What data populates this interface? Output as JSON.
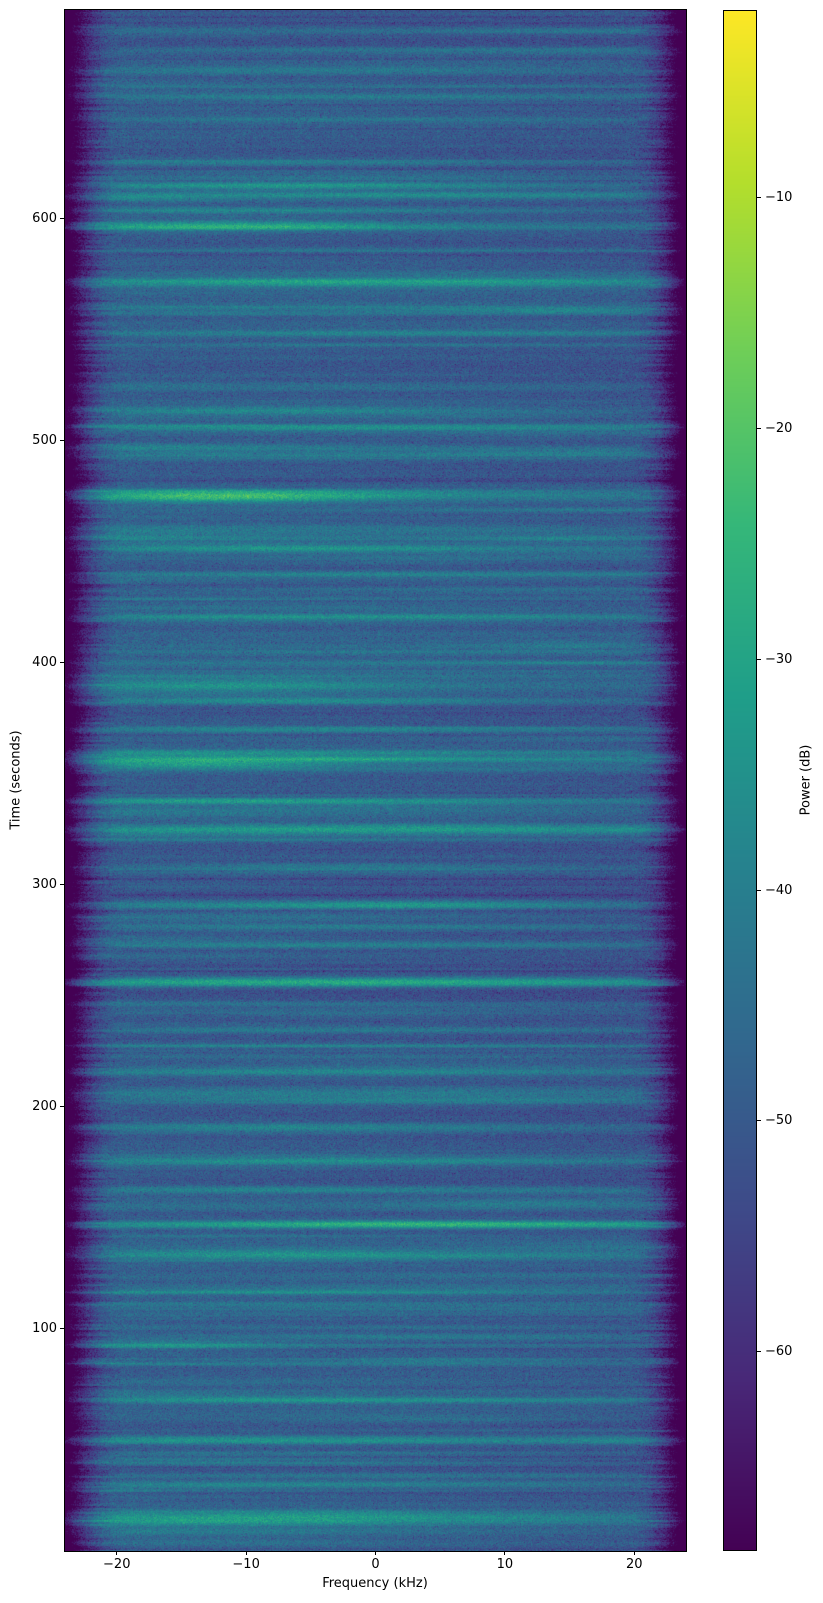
{
  "figure": {
    "background": "#ffffff",
    "text_color": "#000000",
    "spine_color": "#000000"
  },
  "chart_data": {
    "type": "heatmap",
    "subtype": "spectrogram-waterfall",
    "title": "",
    "xlabel": "Frequency (kHz)",
    "ylabel": "Time (seconds)",
    "xlim": [
      -24,
      24
    ],
    "ylim": [
      0,
      694
    ],
    "xticks": [
      -20,
      -10,
      0,
      10,
      20
    ],
    "yticks": [
      100,
      200,
      300,
      400,
      500,
      600
    ],
    "grid": false,
    "legend": "none",
    "colormap": "viridis",
    "palette": [
      "#440154",
      "#482878",
      "#3e4a89",
      "#31688e",
      "#26828e",
      "#1f9e89",
      "#35b779",
      "#6ece58",
      "#b4de2c",
      "#fde725"
    ],
    "colorbar": {
      "label": "Power (dB)",
      "ticks": [
        -10,
        -20,
        -30,
        -40,
        -50,
        -60
      ],
      "vmin": -68.6,
      "vmax": -1.9,
      "position": "right"
    },
    "signal": {
      "baseline_db": -51,
      "row_variation_db": 2.0,
      "speckle_db": 7,
      "band_edge_left_khz": 20.1,
      "band_edge_right_khz": 20.4,
      "edge_jitter_khz": 1.0,
      "edge_depth_db": 30,
      "seed": 1337,
      "minor_streaks": 240,
      "washes": 24,
      "bright_events": [
        {
          "t": 667,
          "amp": 10,
          "fc": -5,
          "fw": 18,
          "tw": 1.4
        },
        {
          "t": 655,
          "amp": 8,
          "fc": 0,
          "fw": 20,
          "tw": 1.0
        },
        {
          "t": 645,
          "amp": 6,
          "fc": -3,
          "fw": 18,
          "tw": 0.8
        },
        {
          "t": 626,
          "amp": 10,
          "fc": -8,
          "fw": 16,
          "tw": 1.4
        },
        {
          "t": 615,
          "amp": 15,
          "fc": -8,
          "fw": 13,
          "tw": 1.4
        },
        {
          "t": 611,
          "amp": 11,
          "fc": 5,
          "fw": 16,
          "tw": 1.0
        },
        {
          "t": 604,
          "amp": 12,
          "fc": -10,
          "fw": 14,
          "tw": 1.0
        },
        {
          "t": 597,
          "amp": 20,
          "fc": -11,
          "fw": 9,
          "tw": 1.6
        },
        {
          "t": 586,
          "amp": 8,
          "fc": 2,
          "fw": 18,
          "tw": 0.9
        },
        {
          "t": 572,
          "amp": 13,
          "fc": -5,
          "fw": 16,
          "tw": 1.2
        },
        {
          "t": 559,
          "amp": 9,
          "fc": 13,
          "fw": 7,
          "tw": 1.0
        },
        {
          "t": 549,
          "amp": 9,
          "fc": 4,
          "fw": 18,
          "tw": 1.0
        },
        {
          "t": 514,
          "amp": 14,
          "fc": -8,
          "fw": 14,
          "tw": 1.5
        },
        {
          "t": 506,
          "amp": 11,
          "fc": -1,
          "fw": 18,
          "tw": 1.0
        },
        {
          "t": 493,
          "amp": 10,
          "fc": -5,
          "fw": 16,
          "tw": 1.0
        },
        {
          "t": 475,
          "amp": 24,
          "fc": -12,
          "fw": 8,
          "tw": 2.0
        },
        {
          "t": 456,
          "amp": 9,
          "fc": 14,
          "fw": 5,
          "tw": 1.0
        },
        {
          "t": 452,
          "amp": 13,
          "fc": -7,
          "fw": 13,
          "tw": 1.3
        },
        {
          "t": 440,
          "amp": 9,
          "fc": -2,
          "fw": 16,
          "tw": 1.0
        },
        {
          "t": 421,
          "amp": 9,
          "fc": 0,
          "fw": 18,
          "tw": 1.0
        },
        {
          "t": 390,
          "amp": 13,
          "fc": -12,
          "fw": 10,
          "tw": 2.4
        },
        {
          "t": 383,
          "amp": 11,
          "fc": -7,
          "fw": 14,
          "tw": 1.2
        },
        {
          "t": 370,
          "amp": 10,
          "fc": -1,
          "fw": 18,
          "tw": 1.0
        },
        {
          "t": 355,
          "amp": 19,
          "fc": -14,
          "fw": 8,
          "tw": 2.0
        },
        {
          "t": 338,
          "amp": 10,
          "fc": -5,
          "fw": 16,
          "tw": 1.2
        },
        {
          "t": 325,
          "amp": 11,
          "fc": -8,
          "fw": 14,
          "tw": 1.2
        },
        {
          "t": 307,
          "amp": 10,
          "fc": -3,
          "fw": 16,
          "tw": 1.2
        },
        {
          "t": 291,
          "amp": 12,
          "fc": -6,
          "fw": 15,
          "tw": 1.2
        },
        {
          "t": 273,
          "amp": 10,
          "fc": 2,
          "fw": 16,
          "tw": 1.0
        },
        {
          "t": 256,
          "amp": 17,
          "fc": -2,
          "fw": 22,
          "tw": 1.4
        },
        {
          "t": 235,
          "amp": 9,
          "fc": 0,
          "fw": 18,
          "tw": 1.0
        },
        {
          "t": 216,
          "amp": 10,
          "fc": -4,
          "fw": 16,
          "tw": 1.2
        },
        {
          "t": 203,
          "amp": 10,
          "fc": 3,
          "fw": 16,
          "tw": 1.0
        },
        {
          "t": 191,
          "amp": 13,
          "fc": -6,
          "fw": 15,
          "tw": 1.4
        },
        {
          "t": 176,
          "amp": 11,
          "fc": -3,
          "fw": 16,
          "tw": 1.2
        },
        {
          "t": 163,
          "amp": 10,
          "fc": -8,
          "fw": 13,
          "tw": 1.2
        },
        {
          "t": 147,
          "amp": 9,
          "fc": 0,
          "fw": 18,
          "tw": 1.0
        },
        {
          "t": 133,
          "amp": 8,
          "fc": -4,
          "fw": 16,
          "tw": 1.0
        },
        {
          "t": 117,
          "amp": 10,
          "fc": -5,
          "fw": 16,
          "tw": 1.2
        },
        {
          "t": 93,
          "amp": 16,
          "fc": -16,
          "fw": 6,
          "tw": 1.4
        },
        {
          "t": 68,
          "amp": 9,
          "fc": 0,
          "fw": 18,
          "tw": 1.0
        },
        {
          "t": 50,
          "amp": 12,
          "fc": -5,
          "fw": 16,
          "tw": 1.5
        },
        {
          "t": 30,
          "amp": 8,
          "fc": -2,
          "fw": 18,
          "tw": 1.0
        },
        {
          "t": 15,
          "amp": 14,
          "fc": -4,
          "fw": 20,
          "tw": 1.8
        }
      ]
    }
  }
}
